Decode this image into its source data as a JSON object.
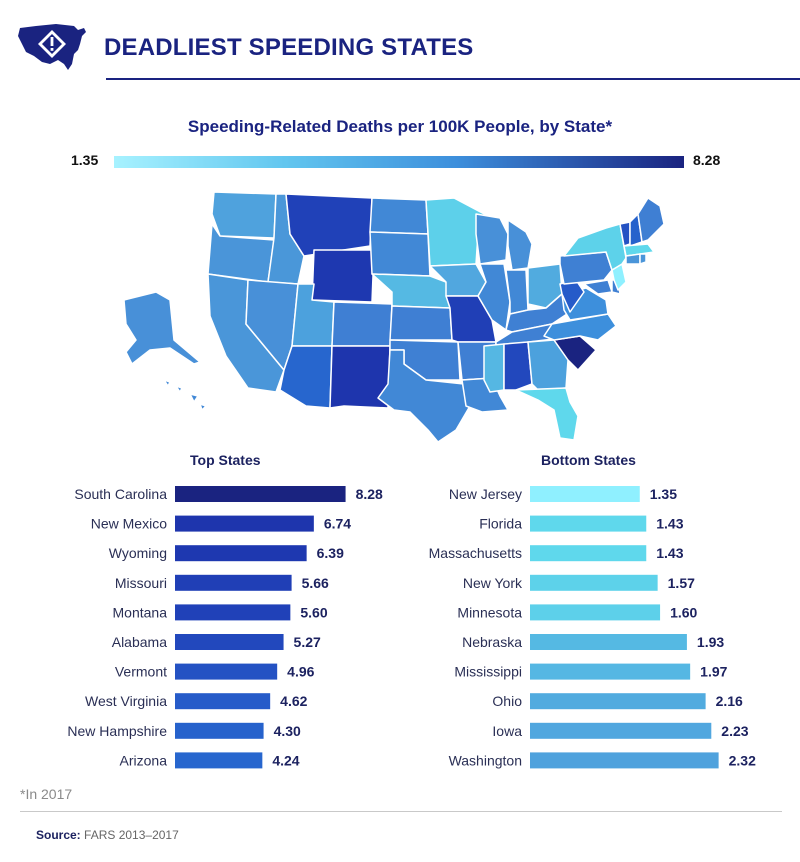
{
  "header": {
    "title": "DEADLIEST SPEEDING STATES",
    "logo_icon": "warning-map-icon"
  },
  "chart_data": [
    {
      "type": "choropleth-map",
      "title": "Speeding-Related Deaths per 100K People, by State*",
      "scale": {
        "min_label": "1.35",
        "max_label": "8.28",
        "min": 1.35,
        "max": 8.28,
        "colors": [
          "#a7f2ff",
          "#1a2380"
        ]
      }
    },
    {
      "type": "bar",
      "title": "Top States",
      "orientation": "horizontal",
      "categories": [
        "South Carolina",
        "New Mexico",
        "Wyoming",
        "Missouri",
        "Montana",
        "Alabama",
        "Vermont",
        "West Virginia",
        "New Hampshire",
        "Arizona"
      ],
      "values": [
        8.28,
        6.74,
        6.39,
        5.66,
        5.6,
        5.27,
        4.96,
        4.62,
        4.3,
        4.24
      ],
      "value_labels": [
        "8.28",
        "6.74",
        "6.39",
        "5.66",
        "5.60",
        "5.27",
        "4.96",
        "4.62",
        "4.30",
        "4.24"
      ],
      "colors": [
        "#1a2380",
        "#1e35ad",
        "#1e38b0",
        "#203fb6",
        "#2041b8",
        "#2248bd",
        "#2452c3",
        "#265bc9",
        "#2662cc",
        "#2766ce"
      ]
    },
    {
      "type": "bar",
      "title": "Bottom States",
      "orientation": "horizontal",
      "categories": [
        "New Jersey",
        "Florida",
        "Massachusetts",
        "New York",
        "Minnesota",
        "Nebraska",
        "Mississippi",
        "Ohio",
        "Iowa",
        "Washington"
      ],
      "values": [
        1.35,
        1.43,
        1.43,
        1.57,
        1.6,
        1.93,
        1.97,
        2.16,
        2.23,
        2.32
      ],
      "value_labels": [
        "1.35",
        "1.43",
        "1.43",
        "1.57",
        "1.60",
        "1.93",
        "1.97",
        "2.16",
        "2.23",
        "2.32"
      ],
      "colors": [
        "#8ff0ff",
        "#5fd8ec",
        "#5fd8ec",
        "#5dd2ea",
        "#5dd0ea",
        "#55b9e3",
        "#55b7e3",
        "#51abdf",
        "#51a7df",
        "#4fa2dd"
      ]
    }
  ],
  "footnote": "*In 2017",
  "source": {
    "label": "Source:",
    "text": "FARS 2013–2017"
  }
}
